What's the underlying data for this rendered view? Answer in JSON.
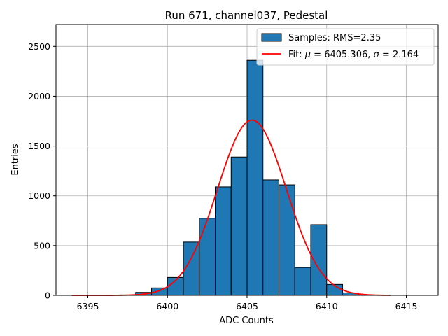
{
  "chart_data": {
    "type": "bar",
    "title": "Run 671, channel037, Pedestal",
    "xlabel": "ADC Counts",
    "ylabel": "Entries",
    "xlim": [
      6393,
      6417
    ],
    "ylim": [
      0,
      2720
    ],
    "xticks": [
      6395,
      6400,
      6405,
      6410,
      6415
    ],
    "yticks": [
      0,
      500,
      1000,
      1500,
      2000,
      2500
    ],
    "grid": true,
    "legend_position": "top-right",
    "histogram": {
      "name": "Samples: RMS=2.35",
      "color": "#1f77b4",
      "bin_width": 1,
      "bins": [
        {
          "x0": 6397,
          "count": 4
        },
        {
          "x0": 6398,
          "count": 30
        },
        {
          "x0": 6399,
          "count": 75
        },
        {
          "x0": 6400,
          "count": 180
        },
        {
          "x0": 6401,
          "count": 535
        },
        {
          "x0": 6402,
          "count": 775
        },
        {
          "x0": 6403,
          "count": 1090
        },
        {
          "x0": 6404,
          "count": 1390
        },
        {
          "x0": 6405,
          "count": 2360
        },
        {
          "x0": 6406,
          "count": 1160
        },
        {
          "x0": 6407,
          "count": 1110
        },
        {
          "x0": 6408,
          "count": 280
        },
        {
          "x0": 6409,
          "count": 710
        },
        {
          "x0": 6410,
          "count": 110
        },
        {
          "x0": 6411,
          "count": 25
        },
        {
          "x0": 6412,
          "count": 4
        }
      ]
    },
    "fit": {
      "name_prefix": "Fit: ",
      "mu_symbol": "μ",
      "sigma_symbol": "σ",
      "mu": "6405.306",
      "sigma": "2.164",
      "mu_value": 6405.306,
      "sigma_value": 2.164,
      "amplitude": 1760,
      "x_range": [
        6394,
        6414
      ],
      "color": "#ff0000"
    }
  }
}
